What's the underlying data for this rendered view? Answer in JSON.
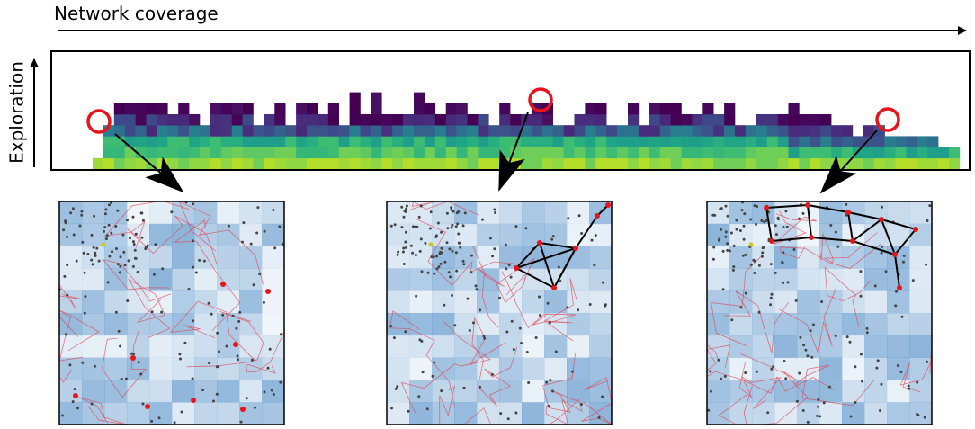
{
  "axis_labels": {
    "horizontal": "Network coverage",
    "vertical": "Exploration"
  }
}
